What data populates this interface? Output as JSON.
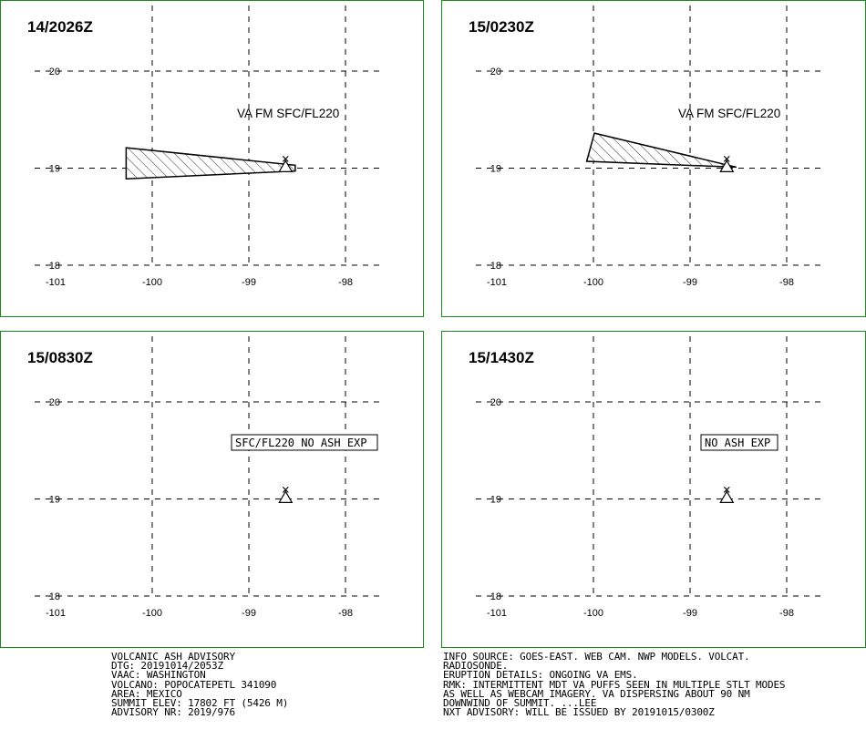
{
  "panels": [
    {
      "id": "p1",
      "time_label": "14/2026Z",
      "annotation": "VA FM SFC/FL220",
      "annotation_boxed": false,
      "ash_polygon": [
        [
          -100.27,
          19.21
        ],
        [
          -98.52,
          19.03
        ],
        [
          -98.52,
          18.97
        ],
        [
          -100.27,
          18.89
        ]
      ]
    },
    {
      "id": "p2",
      "time_label": "15/0230Z",
      "annotation": "VA FM SFC/FL220",
      "annotation_boxed": false,
      "ash_polygon": [
        [
          -99.99,
          19.36
        ],
        [
          -98.52,
          19.01
        ],
        [
          -100.07,
          19.07
        ]
      ]
    },
    {
      "id": "p3",
      "time_label": "15/0830Z",
      "annotation": "SFC/FL220 NO ASH EXP",
      "annotation_boxed": true,
      "ash_polygon": []
    },
    {
      "id": "p4",
      "time_label": "15/1430Z",
      "annotation": "NO ASH EXP",
      "annotation_boxed": true,
      "ash_polygon": []
    }
  ],
  "map": {
    "lon_ticks": [
      "-101",
      "-100",
      "-99",
      "-98"
    ],
    "lat_ticks": [
      "20",
      "19",
      "18"
    ],
    "volcano": {
      "name": "POPOCATEPETL",
      "lon": -98.62,
      "lat": 19.02
    },
    "colors": {
      "frame": "#1a8a1a",
      "grid": "#000000",
      "ash_fill": "#ffffff"
    }
  },
  "advisory_left": [
    "VOLCANIC ASH ADVISORY",
    "DTG: 20191014/2053Z",
    "VAAC: WASHINGTON",
    "VOLCANO: POPOCATEPETL 341090",
    "AREA: MEXICO",
    "SUMMIT ELEV: 17802 FT (5426 M)",
    "ADVISORY NR: 2019/976"
  ],
  "advisory_right": [
    "INFO SOURCE: GOES-EAST. WEB CAM. NWP MODELS. VOLCAT.",
    "RADIOSONDE.",
    "ERUPTION DETAILS: ONGOING VA EMS.",
    "RMK: INTERMITTENT MDT VA PUFFS SEEN IN MULTIPLE STLT MODES",
    "AS WELL AS WEBCAM IMAGERY. VA DISPERSING ABOUT 90 NM",
    "DOWNWIND OF SUMMIT. ...LEE",
    "NXT ADVISORY: WILL BE ISSUED BY 20191015/0300Z"
  ]
}
